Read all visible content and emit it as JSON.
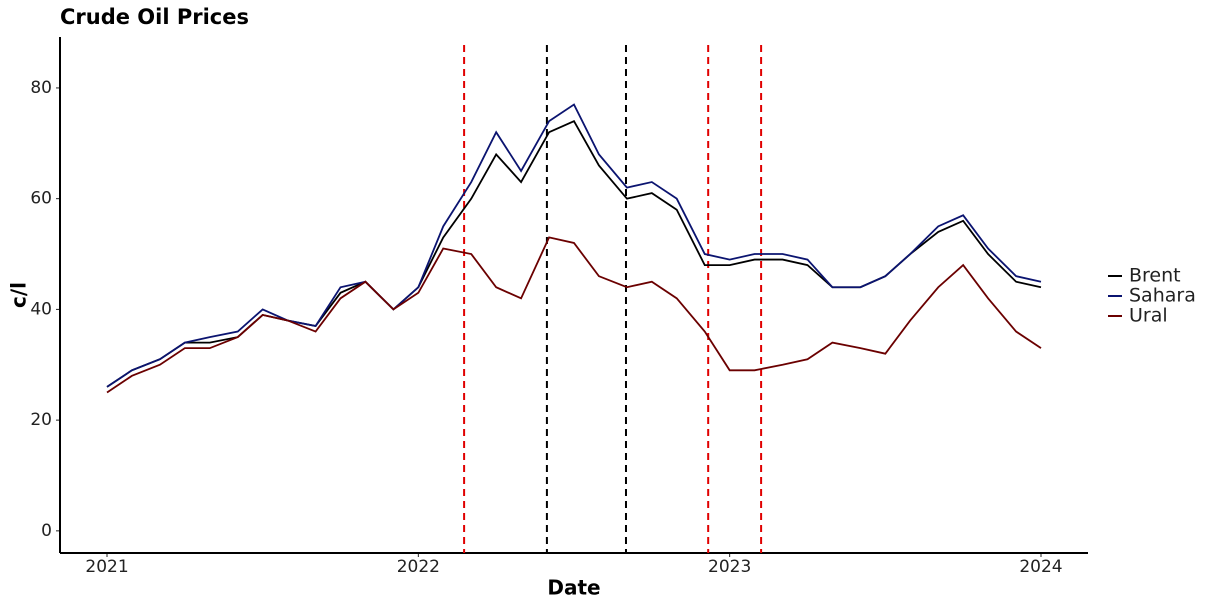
{
  "chart_data": {
    "type": "line",
    "title": "Crude Oil Prices",
    "x_label": "Date",
    "y_label": "c/l",
    "x": [
      2021.0,
      2021.08,
      2021.17,
      2021.25,
      2021.33,
      2021.42,
      2021.5,
      2021.58,
      2021.67,
      2021.75,
      2021.83,
      2021.92,
      2022.0,
      2022.08,
      2022.17,
      2022.25,
      2022.33,
      2022.42,
      2022.5,
      2022.58,
      2022.67,
      2022.75,
      2022.83,
      2022.92,
      2023.0,
      2023.08,
      2023.17,
      2023.25,
      2023.33,
      2023.42,
      2023.5,
      2023.58,
      2023.67,
      2023.75,
      2023.83,
      2023.92,
      2024.0
    ],
    "series": [
      {
        "name": "Brent",
        "color": "#000000",
        "values": [
          26,
          29,
          31,
          34,
          34,
          35,
          39,
          38,
          37,
          43,
          45,
          40,
          44,
          53,
          60,
          68,
          63,
          72,
          74,
          66,
          60,
          61,
          58,
          48,
          48,
          49,
          49,
          48,
          44,
          44,
          46,
          50,
          54,
          56,
          50,
          45,
          44
        ]
      },
      {
        "name": "Sahara",
        "color": "#0b1470",
        "values": [
          26,
          29,
          31,
          34,
          35,
          36,
          40,
          38,
          37,
          44,
          45,
          40,
          44,
          55,
          63,
          72,
          65,
          74,
          77,
          68,
          62,
          63,
          60,
          50,
          49,
          50,
          50,
          49,
          44,
          44,
          46,
          50,
          55,
          57,
          51,
          46,
          45
        ]
      },
      {
        "name": "Ural",
        "color": "#6b0000",
        "values": [
          25,
          28,
          30,
          33,
          33,
          35,
          39,
          38,
          36,
          42,
          45,
          40,
          43,
          51,
          50,
          44,
          42,
          53,
          52,
          46,
          44,
          45,
          42,
          36,
          29,
          29,
          30,
          31,
          34,
          33,
          32,
          38,
          44,
          48,
          42,
          36,
          33
        ]
      }
    ],
    "vlines": [
      {
        "x": 2022.147,
        "color": "#e00000"
      },
      {
        "x": 2022.413,
        "color": "#000000"
      },
      {
        "x": 2022.667,
        "color": "#000000"
      },
      {
        "x": 2022.931,
        "color": "#e00000"
      },
      {
        "x": 2023.101,
        "color": "#e00000"
      }
    ],
    "xlim": [
      2020.849,
      2024.151
    ],
    "xticks": [
      2021,
      2022,
      2023,
      2024
    ],
    "ylim": [
      -4,
      89.2
    ],
    "yticks": [
      0,
      20,
      40,
      60,
      80
    ],
    "grid": false,
    "legend": "right"
  }
}
